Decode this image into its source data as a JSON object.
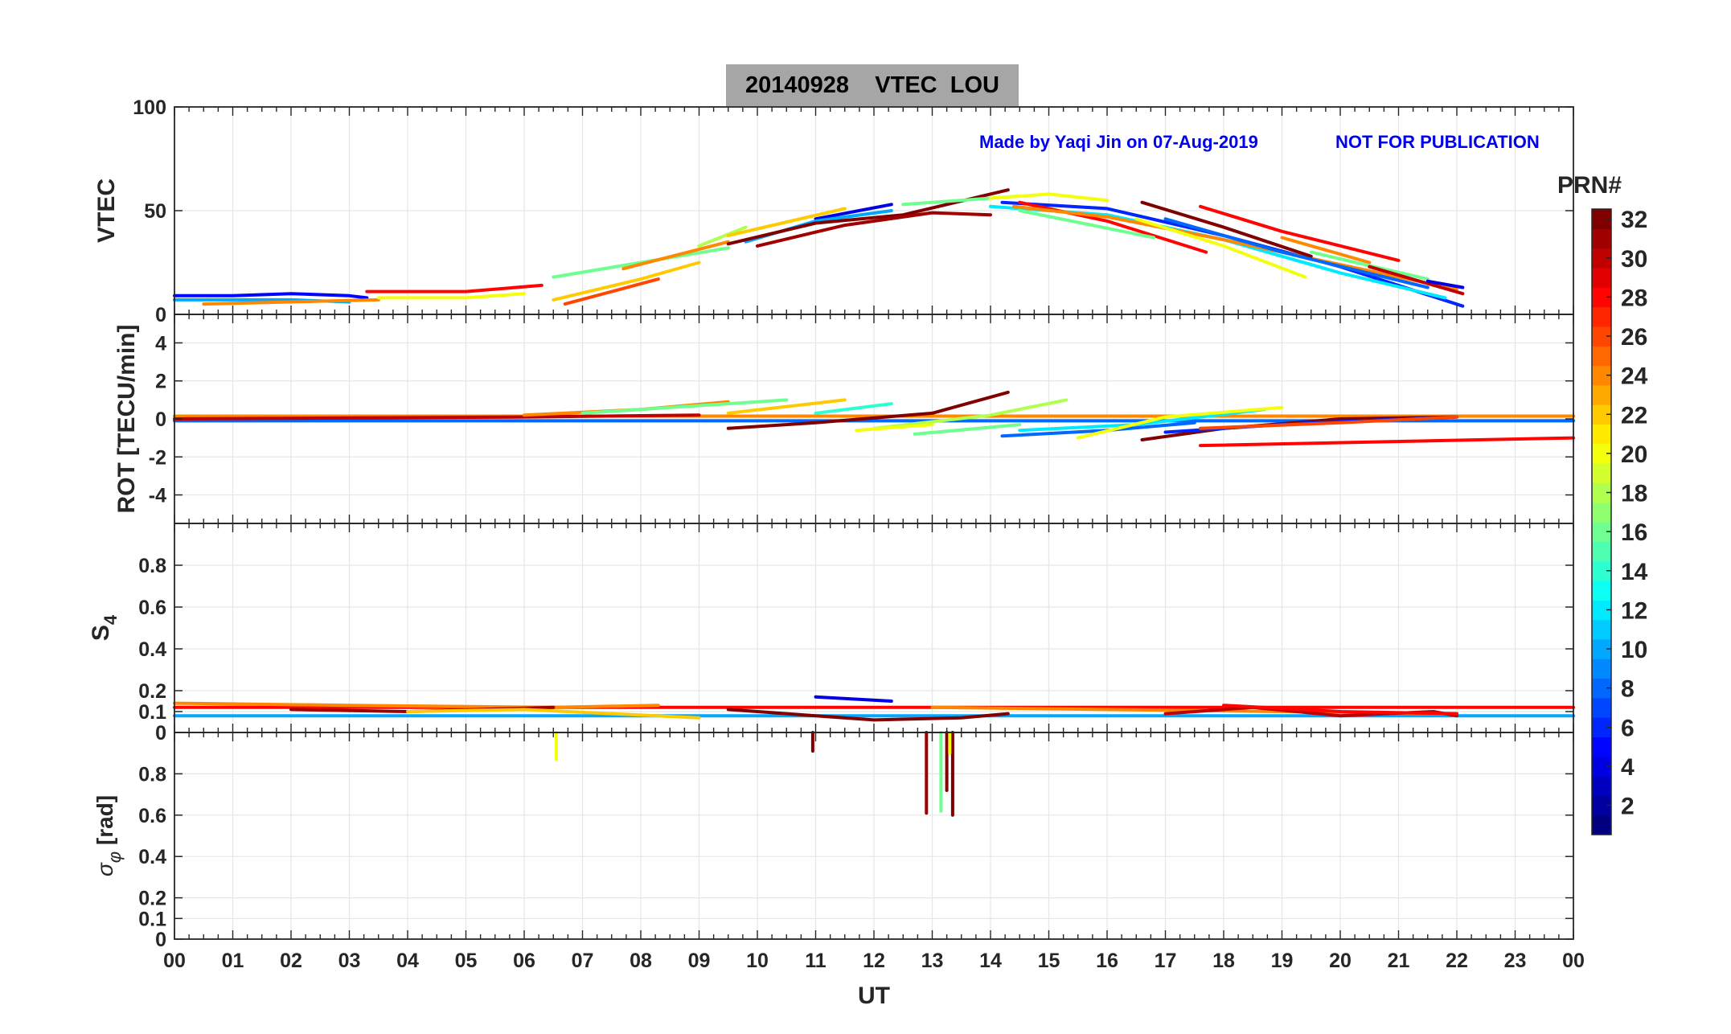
{
  "header": {
    "title": "20140928    VTEC  LOU",
    "made_by": "Made by Yaqi Jin on 07-Aug-2019",
    "disclaimer": "NOT FOR PUBLICATION"
  },
  "colorbar": {
    "label": "PRN#",
    "ticks": [
      2,
      4,
      6,
      8,
      10,
      12,
      14,
      16,
      18,
      20,
      22,
      24,
      26,
      28,
      30,
      32
    ],
    "range": [
      1,
      32
    ],
    "colormap": "jet"
  },
  "chart_data": [
    {
      "type": "line",
      "panel": "VTEC",
      "ylabel": "VTEC",
      "xlim": [
        0,
        24
      ],
      "ylim": [
        0,
        100
      ],
      "yticks": [
        "0",
        "50",
        "100"
      ],
      "grid": true,
      "series": [
        {
          "prn": 5,
          "x": [
            0,
            1,
            2,
            3,
            3.3
          ],
          "y": [
            9,
            9,
            10,
            9,
            8
          ]
        },
        {
          "prn": 10,
          "x": [
            0,
            1,
            2,
            3
          ],
          "y": [
            7,
            7,
            7,
            6
          ]
        },
        {
          "prn": 24,
          "x": [
            0.5,
            2,
            3.5
          ],
          "y": [
            5,
            6,
            7
          ]
        },
        {
          "prn": 28,
          "x": [
            3.3,
            5,
            6.3
          ],
          "y": [
            11,
            11,
            14
          ]
        },
        {
          "prn": 20,
          "x": [
            3.5,
            5,
            6
          ],
          "y": [
            8,
            8,
            10
          ]
        },
        {
          "prn": 16,
          "x": [
            6.5,
            8,
            9.5
          ],
          "y": [
            18,
            25,
            32
          ]
        },
        {
          "prn": 26,
          "x": [
            6.7,
            8.3
          ],
          "y": [
            5,
            17
          ]
        },
        {
          "prn": 22,
          "x": [
            6.5,
            8,
            9
          ],
          "y": [
            7,
            17,
            25
          ]
        },
        {
          "prn": 24,
          "x": [
            7.7,
            9.5
          ],
          "y": [
            22,
            35
          ]
        },
        {
          "prn": 18,
          "x": [
            9,
            9.8
          ],
          "y": [
            33,
            42
          ]
        },
        {
          "prn": 22,
          "x": [
            9.5,
            11.5
          ],
          "y": [
            38,
            51
          ]
        },
        {
          "prn": 4,
          "x": [
            11,
            12.3
          ],
          "y": [
            46,
            53
          ]
        },
        {
          "prn": 10,
          "x": [
            9.8,
            11,
            12.3
          ],
          "y": [
            35,
            45,
            50
          ]
        },
        {
          "prn": 32,
          "x": [
            9.5,
            11,
            12.5,
            14.3
          ],
          "y": [
            34,
            44,
            48,
            60
          ]
        },
        {
          "prn": 31,
          "x": [
            10,
            11.5,
            13,
            14
          ],
          "y": [
            33,
            43,
            49,
            48
          ]
        },
        {
          "prn": 16,
          "x": [
            12.5,
            13.5,
            14.5
          ],
          "y": [
            53,
            55,
            57
          ]
        },
        {
          "prn": 20,
          "x": [
            14,
            15,
            16
          ],
          "y": [
            56,
            58,
            55
          ]
        },
        {
          "prn": 6,
          "x": [
            14.2,
            16,
            18,
            20,
            22.1
          ],
          "y": [
            54,
            51,
            38,
            23,
            4
          ]
        },
        {
          "prn": 12,
          "x": [
            14,
            16,
            18,
            20,
            21.8
          ],
          "y": [
            52,
            48,
            36,
            20,
            8
          ]
        },
        {
          "prn": 28,
          "x": [
            14.5,
            16,
            17.7
          ],
          "y": [
            54,
            45,
            30
          ]
        },
        {
          "prn": 24,
          "x": [
            14.4,
            16,
            18,
            20,
            22
          ],
          "y": [
            52,
            47,
            36,
            24,
            12
          ]
        },
        {
          "prn": 16,
          "x": [
            14.5,
            16.8
          ],
          "y": [
            50,
            37
          ]
        },
        {
          "prn": 32,
          "x": [
            16.6,
            18,
            19.5
          ],
          "y": [
            54,
            42,
            28
          ]
        },
        {
          "prn": 28,
          "x": [
            17.6,
            19,
            21
          ],
          "y": [
            52,
            40,
            26
          ]
        },
        {
          "prn": 8,
          "x": [
            17,
            19,
            21.5
          ],
          "y": [
            46,
            30,
            13
          ]
        },
        {
          "prn": 20,
          "x": [
            16.5,
            18,
            19.4
          ],
          "y": [
            46,
            33,
            18
          ]
        },
        {
          "prn": 24,
          "x": [
            19,
            20.5
          ],
          "y": [
            37,
            25
          ]
        },
        {
          "prn": 16,
          "x": [
            19.5,
            21.5
          ],
          "y": [
            30,
            17
          ]
        },
        {
          "prn": 30,
          "x": [
            20.5,
            22.1
          ],
          "y": [
            23,
            10
          ]
        },
        {
          "prn": 4,
          "x": [
            21.5,
            22.1
          ],
          "y": [
            16,
            13
          ]
        }
      ]
    },
    {
      "type": "line",
      "panel": "ROT",
      "ylabel": "ROT [TECU/min]",
      "xlim": [
        0,
        24
      ],
      "ylim": [
        -5.5,
        5.5
      ],
      "yticks": [
        "-4",
        "-2",
        "0",
        "2",
        "4"
      ],
      "grid": true,
      "series": [
        {
          "prn": 24,
          "x": [
            0,
            24
          ],
          "y": [
            0.15,
            0.15
          ]
        },
        {
          "prn": 8,
          "x": [
            0,
            24
          ],
          "y": [
            -0.1,
            -0.1
          ]
        },
        {
          "prn": 30,
          "x": [
            0,
            3,
            6,
            9
          ],
          "y": [
            0.0,
            0.05,
            0.1,
            0.2
          ]
        },
        {
          "prn": 24,
          "x": [
            6,
            8,
            9.5
          ],
          "y": [
            0.2,
            0.5,
            0.9
          ]
        },
        {
          "prn": 16,
          "x": [
            7,
            9,
            10.5
          ],
          "y": [
            0.3,
            0.7,
            1.0
          ]
        },
        {
          "prn": 22,
          "x": [
            9.5,
            11.5
          ],
          "y": [
            0.3,
            1.0
          ]
        },
        {
          "prn": 14,
          "x": [
            11,
            12.3
          ],
          "y": [
            0.3,
            0.8
          ]
        },
        {
          "prn": 32,
          "x": [
            9.5,
            11,
            13,
            14.3
          ],
          "y": [
            -0.5,
            -0.2,
            0.3,
            1.4
          ]
        },
        {
          "prn": 18,
          "x": [
            12,
            14,
            15.3
          ],
          "y": [
            -0.5,
            0.2,
            1.0
          ]
        },
        {
          "prn": 20,
          "x": [
            11.7,
            13
          ],
          "y": [
            -0.6,
            -0.3
          ]
        },
        {
          "prn": 16,
          "x": [
            12.7,
            14.5
          ],
          "y": [
            -0.8,
            -0.3
          ]
        },
        {
          "prn": 8,
          "x": [
            14.2,
            16,
            17.5
          ],
          "y": [
            -0.9,
            -0.6,
            -0.2
          ]
        },
        {
          "prn": 12,
          "x": [
            14.5,
            16.5,
            18.7
          ],
          "y": [
            -0.6,
            -0.3,
            0.5
          ]
        },
        {
          "prn": 20,
          "x": [
            15.5,
            17,
            19
          ],
          "y": [
            -1.0,
            0.1,
            0.6
          ]
        },
        {
          "prn": 32,
          "x": [
            16.6,
            18,
            20,
            22
          ],
          "y": [
            -1.1,
            -0.5,
            0.0,
            0.1
          ]
        },
        {
          "prn": 6,
          "x": [
            17,
            19.5,
            22
          ],
          "y": [
            -0.7,
            -0.2,
            0.1
          ]
        },
        {
          "prn": 28,
          "x": [
            17.6,
            24
          ],
          "y": [
            -1.4,
            -1.0
          ]
        },
        {
          "prn": 26,
          "x": [
            17.6,
            20,
            22
          ],
          "y": [
            -0.5,
            -0.2,
            0.1
          ]
        }
      ]
    },
    {
      "type": "line",
      "panel": "S4",
      "ylabel": "S4",
      "xlim": [
        0,
        24
      ],
      "ylim": [
        0,
        1
      ],
      "yticks": [
        "0",
        "0.1",
        "0.2",
        "0.4",
        "0.6",
        "0.8"
      ],
      "grid": true,
      "series": [
        {
          "prn": 28,
          "x": [
            0,
            24
          ],
          "y": [
            0.12,
            0.12
          ]
        },
        {
          "prn": 10,
          "x": [
            0,
            24
          ],
          "y": [
            0.08,
            0.08
          ]
        },
        {
          "prn": 24,
          "x": [
            0,
            3,
            6.5,
            8.3
          ],
          "y": [
            0.14,
            0.13,
            0.12,
            0.13
          ]
        },
        {
          "prn": 31,
          "x": [
            2,
            4,
            6.5
          ],
          "y": [
            0.11,
            0.1,
            0.12
          ]
        },
        {
          "prn": 22,
          "x": [
            4,
            6,
            9
          ],
          "y": [
            0.1,
            0.11,
            0.07
          ]
        },
        {
          "prn": 32,
          "x": [
            9.5,
            11,
            12,
            13.5,
            14.3
          ],
          "y": [
            0.11,
            0.08,
            0.06,
            0.07,
            0.09
          ]
        },
        {
          "prn": 4,
          "x": [
            11,
            12.3
          ],
          "y": [
            0.17,
            0.15
          ]
        },
        {
          "prn": 24,
          "x": [
            13,
            16,
            19,
            22
          ],
          "y": [
            0.12,
            0.11,
            0.1,
            0.09
          ]
        },
        {
          "prn": 30,
          "x": [
            17,
            18.5,
            20,
            21.6,
            22
          ],
          "y": [
            0.09,
            0.12,
            0.08,
            0.1,
            0.08
          ]
        },
        {
          "prn": 28,
          "x": [
            18,
            20,
            22
          ],
          "y": [
            0.13,
            0.1,
            0.09
          ]
        }
      ]
    },
    {
      "type": "line",
      "panel": "sigma-phi",
      "ylabel": "σ φ [rad]",
      "xlim": [
        0,
        24
      ],
      "ylim": [
        0,
        1
      ],
      "yticks": [
        "0",
        "0.1",
        "0.2",
        "0.4",
        "0.6",
        "0.8"
      ],
      "grid": true,
      "xticks": [
        "00",
        "01",
        "02",
        "03",
        "04",
        "05",
        "06",
        "07",
        "08",
        "09",
        "10",
        "11",
        "12",
        "13",
        "14",
        "15",
        "16",
        "17",
        "18",
        "19",
        "20",
        "21",
        "22",
        "23",
        "00"
      ],
      "xlabel": "UT",
      "series": [
        {
          "prn": 20,
          "x": [
            6.55,
            6.55
          ],
          "y": [
            1.0,
            0.87
          ]
        },
        {
          "prn": 32,
          "x": [
            10.95,
            10.95
          ],
          "y": [
            1.0,
            0.91
          ]
        },
        {
          "prn": 31,
          "x": [
            12.9,
            12.9
          ],
          "y": [
            1.0,
            0.61
          ]
        },
        {
          "prn": 16,
          "x": [
            13.15,
            13.15
          ],
          "y": [
            1.0,
            0.62
          ]
        },
        {
          "prn": 32,
          "x": [
            13.25,
            13.25
          ],
          "y": [
            1.0,
            0.72
          ]
        },
        {
          "prn": 32,
          "x": [
            13.35,
            13.35
          ],
          "y": [
            1.0,
            0.6
          ]
        },
        {
          "prn": 20,
          "x": [
            13.3,
            13.3
          ],
          "y": [
            1.0,
            0.9
          ]
        }
      ]
    }
  ]
}
